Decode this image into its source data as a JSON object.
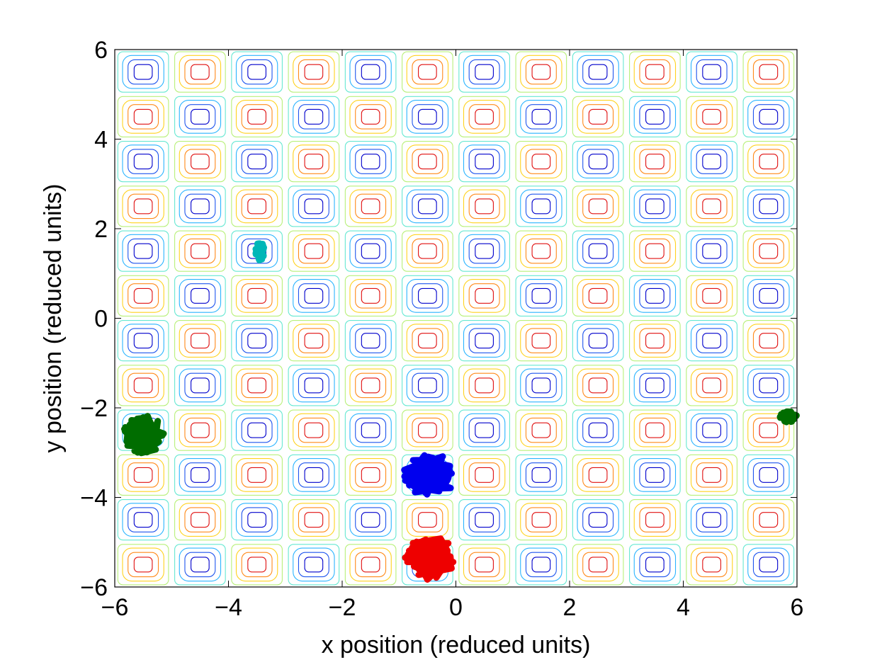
{
  "chart_data": {
    "type": "contour",
    "title": "",
    "xlabel": "x position (reduced units)",
    "ylabel": "y position (reduced units)",
    "xlim": [
      -6,
      6
    ],
    "ylim": [
      -6,
      6
    ],
    "xticks": [
      -6,
      -4,
      -2,
      0,
      2,
      4,
      6
    ],
    "yticks": [
      -6,
      -4,
      -2,
      0,
      2,
      4,
      6
    ],
    "xtick_labels": [
      "−6",
      "−4",
      "−2",
      "0",
      "2",
      "4",
      "6"
    ],
    "ytick_labels": [
      "−6",
      "−4",
      "−2",
      "0",
      "2",
      "4",
      "6"
    ],
    "grid": false,
    "legend": "none",
    "contour": {
      "function": "sin(pi*x)*sin(pi*y)",
      "cells_x": 12,
      "cells_y": 12,
      "cell_size": 1,
      "origin_x": -6,
      "origin_y": -6,
      "levels": [
        -0.9,
        -0.7,
        -0.45,
        -0.2,
        0.2,
        0.45,
        0.7,
        0.9
      ],
      "level_colors": [
        "#0000cc",
        "#1f55ee",
        "#2ab4ff",
        "#66e8d2",
        "#b8f07a",
        "#ffd21e",
        "#ff8a1a",
        "#e01010"
      ]
    },
    "series": [
      {
        "color": "#00b7b7",
        "center": [
          -3.45,
          1.5
        ],
        "spread": [
          0.16,
          0.42
        ]
      },
      {
        "color": "#006d00",
        "center": [
          -5.5,
          -2.6
        ],
        "spread": [
          0.75,
          0.85
        ]
      },
      {
        "color": "#006d00",
        "center": [
          5.85,
          -2.2
        ],
        "spread": [
          0.3,
          0.25
        ]
      },
      {
        "color": "#0000ee",
        "center": [
          -0.45,
          -3.5
        ],
        "spread": [
          0.95,
          0.95
        ]
      },
      {
        "color": "#ee0000",
        "center": [
          -0.45,
          -5.35
        ],
        "spread": [
          0.9,
          1.0
        ]
      }
    ]
  }
}
